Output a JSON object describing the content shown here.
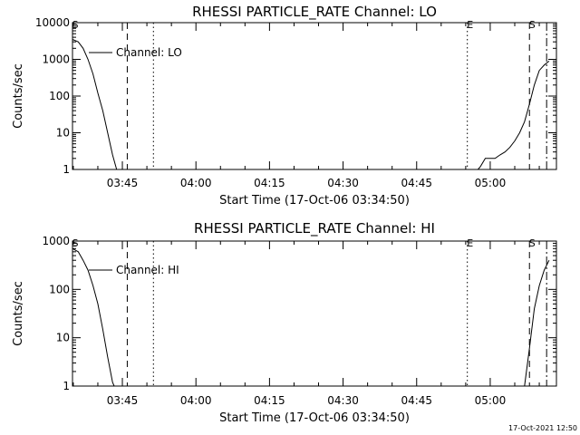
{
  "footer_stamp": "17-Oct-2021 12:50",
  "colors": {
    "line": "#000000",
    "background": "#ffffff"
  },
  "chart_data": [
    {
      "type": "line",
      "title": "RHESSI PARTICLE_RATE Channel: LO",
      "xlabel": "Start Time (17-Oct-06 03:34:50)",
      "ylabel": "Counts/sec",
      "yscale": "log",
      "ylim": [
        1,
        10000
      ],
      "xlim": [
        "03:34:50",
        "05:13:30"
      ],
      "x_ticks": [
        "03:45",
        "04:00",
        "04:15",
        "04:30",
        "04:45",
        "05:00"
      ],
      "y_ticks": [
        "1",
        "10",
        "100",
        "1000",
        "10000"
      ],
      "legend": "Channel: LO",
      "series": [
        {
          "name": "Channel: LO",
          "segments": [
            [
              [
                "03:34:50",
                3500
              ],
              [
                "03:36:00",
                3000
              ],
              [
                "03:37:00",
                2000
              ],
              [
                "03:38:00",
                1000
              ],
              [
                "03:39:00",
                400
              ],
              [
                "03:40:00",
                120
              ],
              [
                "03:41:00",
                40
              ],
              [
                "03:42:00",
                10
              ],
              [
                "03:43:00",
                2.5
              ],
              [
                "03:43:50",
                1
              ]
            ],
            [
              [
                "04:57:30",
                1
              ],
              [
                "04:58:00",
                1.2
              ],
              [
                "04:59:00",
                2
              ],
              [
                "05:01:00",
                2
              ],
              [
                "05:02:00",
                2.5
              ],
              [
                "05:03:00",
                3
              ],
              [
                "05:04:00",
                4
              ],
              [
                "05:05:00",
                6
              ],
              [
                "05:06:00",
                10
              ],
              [
                "05:07:00",
                20
              ],
              [
                "05:08:00",
                60
              ],
              [
                "05:09:00",
                200
              ],
              [
                "05:10:00",
                500
              ],
              [
                "05:11:00",
                700
              ],
              [
                "05:12:00",
                900
              ]
            ]
          ]
        }
      ],
      "markers": [
        {
          "label": "S",
          "time": "03:34:50",
          "style": "solid"
        },
        {
          "label": "",
          "time": "03:46:00",
          "style": "dashed"
        },
        {
          "label": "",
          "time": "03:51:20",
          "style": "dotted"
        },
        {
          "label": "E",
          "time": "04:55:20",
          "style": "dotted"
        },
        {
          "label": "S",
          "time": "05:08:00",
          "style": "dashed"
        },
        {
          "label": "",
          "time": "05:11:30",
          "style": "dashdot"
        }
      ]
    },
    {
      "type": "line",
      "title": "RHESSI PARTICLE_RATE Channel: HI",
      "xlabel": "Start Time (17-Oct-06 03:34:50)",
      "ylabel": "Counts/sec",
      "yscale": "log",
      "ylim": [
        1,
        1000
      ],
      "xlim": [
        "03:34:50",
        "05:13:30"
      ],
      "x_ticks": [
        "03:45",
        "04:00",
        "04:15",
        "04:30",
        "04:45",
        "05:00"
      ],
      "y_ticks": [
        "1",
        "10",
        "100",
        "1000"
      ],
      "legend": "Channel: HI",
      "series": [
        {
          "name": "Channel: HI",
          "segments": [
            [
              [
                "03:34:50",
                700
              ],
              [
                "03:36:00",
                600
              ],
              [
                "03:37:00",
                400
              ],
              [
                "03:38:00",
                250
              ],
              [
                "03:39:00",
                120
              ],
              [
                "03:40:00",
                50
              ],
              [
                "03:41:00",
                15
              ],
              [
                "03:42:00",
                4
              ],
              [
                "03:43:00",
                1.2
              ],
              [
                "03:43:20",
                1
              ]
            ],
            [
              [
                "05:07:00",
                1
              ],
              [
                "05:08:00",
                6
              ],
              [
                "05:09:00",
                40
              ],
              [
                "05:10:00",
                120
              ],
              [
                "05:11:00",
                250
              ],
              [
                "05:12:00",
                400
              ]
            ]
          ]
        }
      ],
      "markers": [
        {
          "label": "S",
          "time": "03:34:50",
          "style": "solid"
        },
        {
          "label": "",
          "time": "03:46:00",
          "style": "dashed"
        },
        {
          "label": "",
          "time": "03:51:20",
          "style": "dotted"
        },
        {
          "label": "E",
          "time": "04:55:20",
          "style": "dotted"
        },
        {
          "label": "S",
          "time": "05:08:00",
          "style": "dashed"
        },
        {
          "label": "",
          "time": "05:11:30",
          "style": "dashdot"
        }
      ]
    }
  ]
}
